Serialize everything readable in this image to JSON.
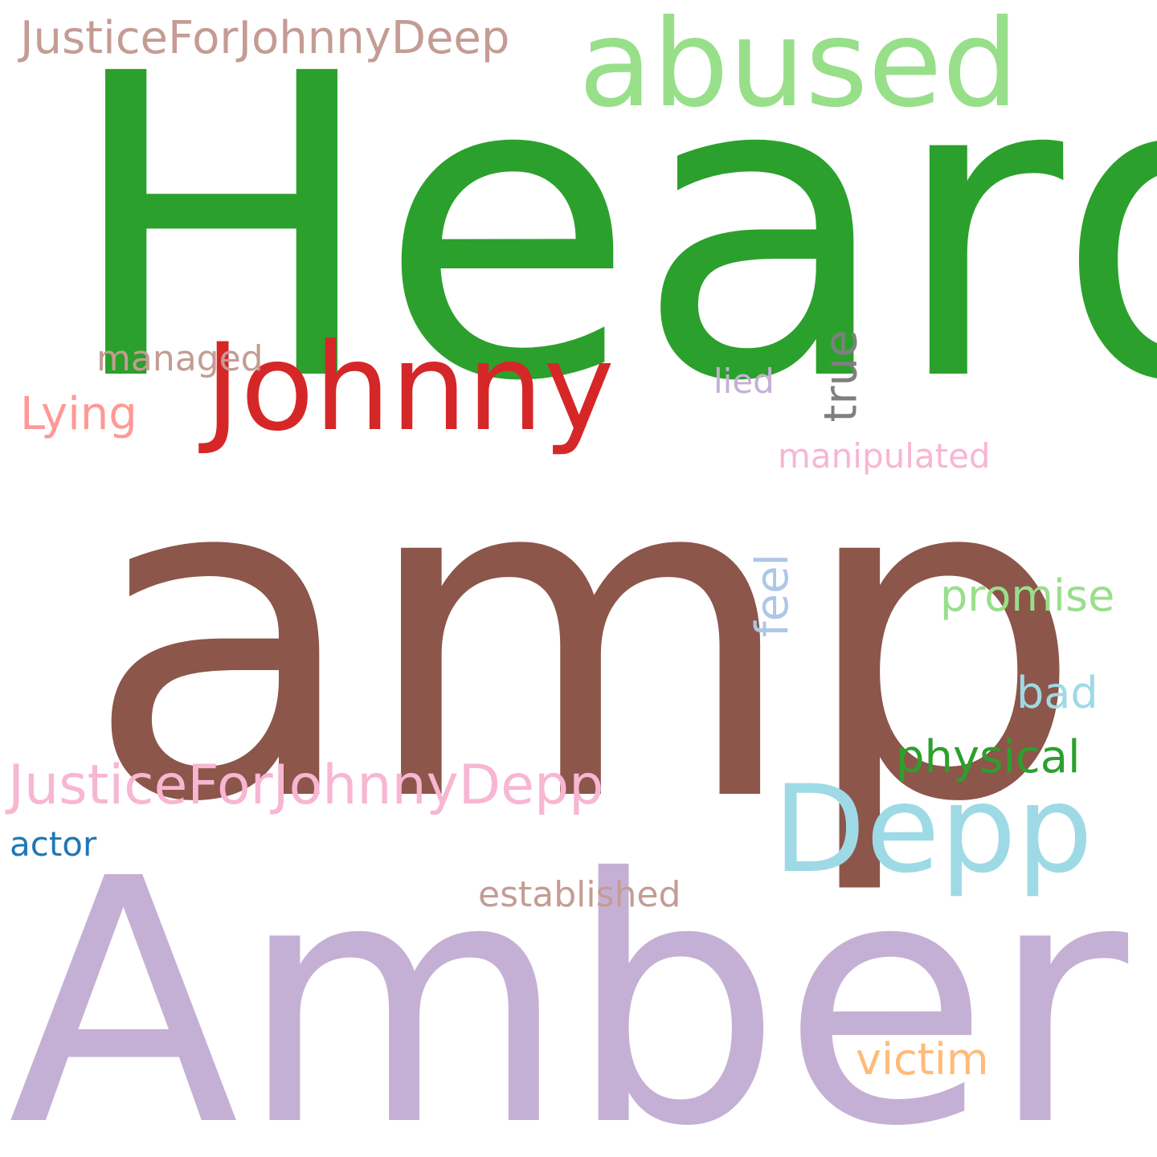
{
  "wordcloud": {
    "words": {
      "heard": {
        "text": "Heard",
        "color": "#2ca02c"
      },
      "amp": {
        "text": "amp",
        "color": "#8c564b"
      },
      "amber": {
        "text": "Amber",
        "color": "#c5b0d5"
      },
      "johnny": {
        "text": "Johnny",
        "color": "#d62728"
      },
      "abused": {
        "text": "abused",
        "color": "#98df8a"
      },
      "justice_deep": {
        "text": "JusticeForJohnnyDeep",
        "color": "#c49c94"
      },
      "justice_depp": {
        "text": "JusticeForJohnnyDepp",
        "color": "#f7b6d2"
      },
      "depp": {
        "text": "Depp",
        "color": "#9edae5"
      },
      "managed": {
        "text": "managed",
        "color": "#c49c94"
      },
      "lying": {
        "text": "Lying",
        "color": "#ff9896"
      },
      "lied": {
        "text": "lied",
        "color": "#c5b0d5"
      },
      "true": {
        "text": "true",
        "color": "#7f7f7f"
      },
      "manipulated": {
        "text": "manipulated",
        "color": "#f7b6d2"
      },
      "feel": {
        "text": "feel",
        "color": "#aec7e8"
      },
      "promise": {
        "text": "promise",
        "color": "#98df8a"
      },
      "bad": {
        "text": "bad",
        "color": "#9edae5"
      },
      "physical": {
        "text": "physical",
        "color": "#2ca02c"
      },
      "actor": {
        "text": "actor",
        "color": "#1f77b4"
      },
      "established": {
        "text": "established",
        "color": "#c49c94"
      },
      "victim": {
        "text": "victim",
        "color": "#ffbb78"
      }
    }
  }
}
